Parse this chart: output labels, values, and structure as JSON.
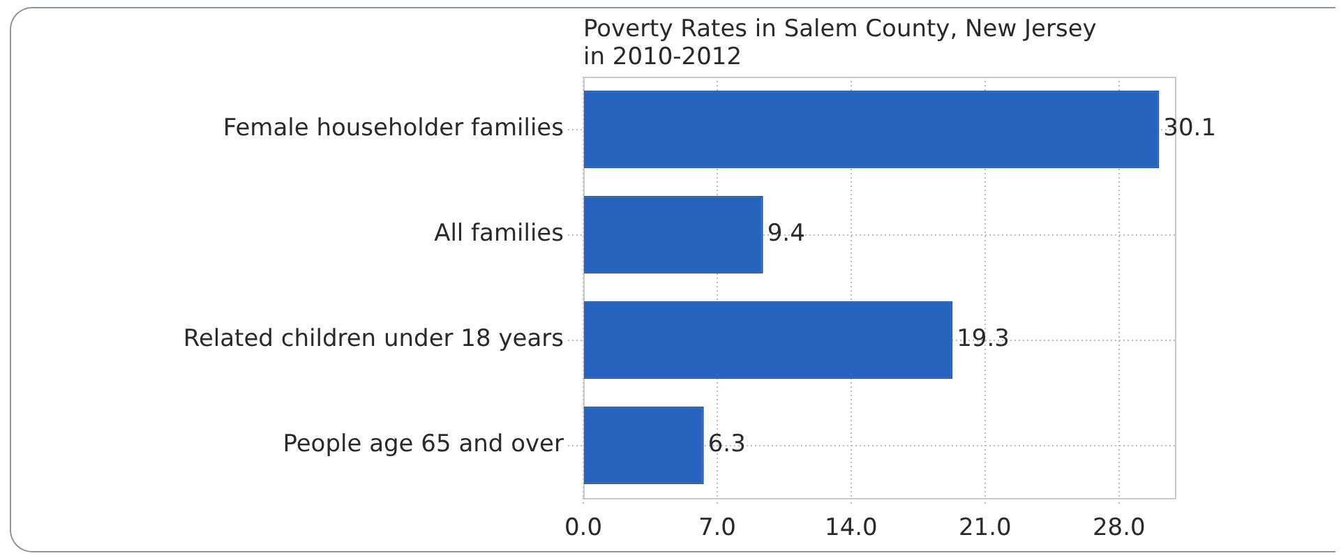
{
  "chart_data": {
    "type": "bar",
    "orientation": "horizontal",
    "title": "Poverty Rates in Salem County, New Jersey\nin 2010-2012",
    "categories": [
      "Female householder families",
      "All families",
      "Related children under 18 years",
      "People age 65 and over"
    ],
    "values": [
      30.1,
      9.4,
      19.3,
      6.3
    ],
    "color": "#2563be",
    "xlim": [
      0,
      31
    ],
    "xticks": [
      {
        "value": 0,
        "label": "0.0"
      },
      {
        "value": 7,
        "label": "7.0"
      },
      {
        "value": 14,
        "label": "14.0"
      },
      {
        "value": 21,
        "label": "21.0"
      },
      {
        "value": 28,
        "label": "28.0"
      }
    ],
    "grid": true,
    "data_labels": true
  }
}
